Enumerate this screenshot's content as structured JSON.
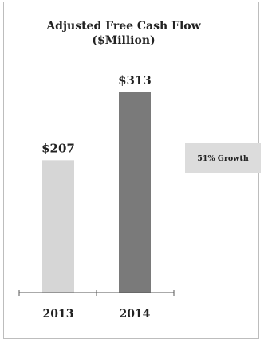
{
  "chart_data": {
    "type": "bar",
    "title": "Adjusted Free Cash Flow\n($Million)",
    "categories": [
      "2013",
      "2014"
    ],
    "values": [
      207,
      313
    ],
    "value_labels": [
      "$207",
      "$313"
    ],
    "bar_colors": [
      "#d6d6d6",
      "#7a7a7a"
    ],
    "annotation": "51% Growth",
    "grid": false,
    "ylim": [
      0,
      313
    ]
  }
}
